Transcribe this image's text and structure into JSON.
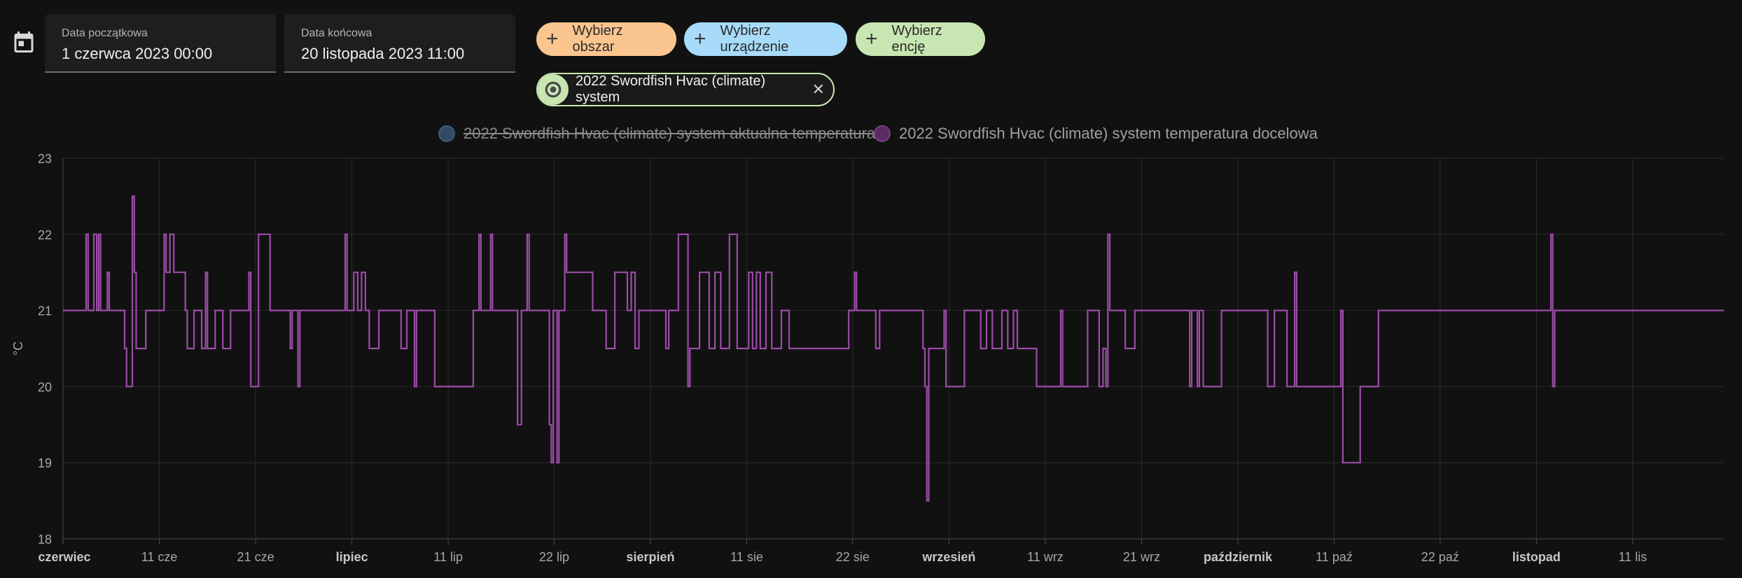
{
  "toolbar": {
    "calendar_icon": "calendar-icon",
    "start_label": "Data początkowa",
    "start_value": "1 czerwca 2023 00:00",
    "end_label": "Data końcowa",
    "end_value": "20 listopada 2023 11:00",
    "area_label": "Wybierz obszar",
    "device_label": "Wybierz urządzenie",
    "entity_label": "Wybierz encję",
    "plus_glyph": "+",
    "chip_label": "2022 Swordfish Hvac (climate) system",
    "chip_icon": "thermostat-icon",
    "chip_close": "✕",
    "colors": {
      "area": "#fbc58f",
      "device": "#a8dbf9",
      "entity": "#c8e6b1"
    }
  },
  "chart_data": {
    "type": "line",
    "step": true,
    "ylabel": "°C",
    "ylim": [
      18,
      23
    ],
    "yticks": [
      "23",
      "22",
      "21",
      "20",
      "19",
      "18"
    ],
    "xlim": [
      0,
      172.46
    ],
    "xticks": [
      {
        "label": "czerwiec",
        "day": 0,
        "bold": true
      },
      {
        "label": "11 cze",
        "day": 10,
        "bold": false
      },
      {
        "label": "21 cze",
        "day": 20,
        "bold": false
      },
      {
        "label": "lipiec",
        "day": 30,
        "bold": true
      },
      {
        "label": "11 lip",
        "day": 40,
        "bold": false
      },
      {
        "label": "22 lip",
        "day": 51,
        "bold": false
      },
      {
        "label": "sierpień",
        "day": 61,
        "bold": true
      },
      {
        "label": "11 sie",
        "day": 71,
        "bold": false
      },
      {
        "label": "22 sie",
        "day": 82,
        "bold": false
      },
      {
        "label": "wrzesień",
        "day": 92,
        "bold": true
      },
      {
        "label": "11 wrz",
        "day": 102,
        "bold": false
      },
      {
        "label": "21 wrz",
        "day": 112,
        "bold": false
      },
      {
        "label": "październik",
        "day": 122,
        "bold": true
      },
      {
        "label": "11 paź",
        "day": 132,
        "bold": false
      },
      {
        "label": "22 paź",
        "day": 143,
        "bold": false
      },
      {
        "label": "listopad",
        "day": 153,
        "bold": true
      },
      {
        "label": "11 lis",
        "day": 163,
        "bold": false
      }
    ],
    "grid": true,
    "legend_position": "top-center",
    "series": [
      {
        "name": "2022 Swordfish Hvac (climate) system aktualna temperatura",
        "color": "#3f5a7c",
        "hidden": true,
        "points": []
      },
      {
        "name": "2022 Swordfish Hvac (climate) system temperatura docelowa",
        "color": "#9c4ca8",
        "hidden": false,
        "points": [
          [
            0,
            21
          ],
          [
            2.4,
            21
          ],
          [
            2.4,
            22
          ],
          [
            2.6,
            22
          ],
          [
            2.6,
            21
          ],
          [
            3.2,
            21
          ],
          [
            3.2,
            22
          ],
          [
            3.5,
            22
          ],
          [
            3.5,
            21
          ],
          [
            3.7,
            21
          ],
          [
            3.7,
            22
          ],
          [
            3.9,
            22
          ],
          [
            3.9,
            21
          ],
          [
            4.6,
            21
          ],
          [
            4.6,
            21.5
          ],
          [
            4.8,
            21.5
          ],
          [
            4.8,
            21
          ],
          [
            6.4,
            21
          ],
          [
            6.4,
            20.5
          ],
          [
            6.6,
            20.5
          ],
          [
            6.6,
            20
          ],
          [
            7.2,
            20
          ],
          [
            7.2,
            22.5
          ],
          [
            7.4,
            22.5
          ],
          [
            7.4,
            21.5
          ],
          [
            7.6,
            21.5
          ],
          [
            7.6,
            20.5
          ],
          [
            8.6,
            20.5
          ],
          [
            8.6,
            21
          ],
          [
            10.5,
            21
          ],
          [
            10.5,
            22
          ],
          [
            10.7,
            22
          ],
          [
            10.7,
            21.5
          ],
          [
            11.1,
            21.5
          ],
          [
            11.1,
            22
          ],
          [
            11.5,
            22
          ],
          [
            11.5,
            21.5
          ],
          [
            12.7,
            21.5
          ],
          [
            12.7,
            21
          ],
          [
            12.9,
            21
          ],
          [
            12.9,
            20.5
          ],
          [
            13.6,
            20.5
          ],
          [
            13.6,
            21
          ],
          [
            14.4,
            21
          ],
          [
            14.4,
            20.5
          ],
          [
            14.8,
            20.5
          ],
          [
            14.8,
            21.5
          ],
          [
            15,
            21.5
          ],
          [
            15,
            20.5
          ],
          [
            15.8,
            20.5
          ],
          [
            15.8,
            21
          ],
          [
            16.6,
            21
          ],
          [
            16.6,
            20.5
          ],
          [
            17.4,
            20.5
          ],
          [
            17.4,
            21
          ],
          [
            19.3,
            21
          ],
          [
            19.3,
            21.5
          ],
          [
            19.5,
            21.5
          ],
          [
            19.5,
            20
          ],
          [
            20.3,
            20
          ],
          [
            20.3,
            22
          ],
          [
            21.5,
            22
          ],
          [
            21.5,
            21
          ],
          [
            23.6,
            21
          ],
          [
            23.6,
            20.5
          ],
          [
            23.8,
            20.5
          ],
          [
            23.8,
            21
          ],
          [
            24.4,
            21
          ],
          [
            24.4,
            20
          ],
          [
            24.6,
            20
          ],
          [
            24.6,
            21
          ],
          [
            29.3,
            21
          ],
          [
            29.3,
            22
          ],
          [
            29.5,
            22
          ],
          [
            29.5,
            21
          ],
          [
            30.2,
            21
          ],
          [
            30.2,
            21.5
          ],
          [
            30.6,
            21.5
          ],
          [
            30.6,
            21
          ],
          [
            31,
            21
          ],
          [
            31,
            21.5
          ],
          [
            31.4,
            21.5
          ],
          [
            31.4,
            21
          ],
          [
            31.8,
            21
          ],
          [
            31.8,
            20.5
          ],
          [
            32.8,
            20.5
          ],
          [
            32.8,
            21
          ],
          [
            35.1,
            21
          ],
          [
            35.1,
            20.5
          ],
          [
            35.7,
            20.5
          ],
          [
            35.7,
            21
          ],
          [
            36.5,
            21
          ],
          [
            36.5,
            20
          ],
          [
            36.7,
            20
          ],
          [
            36.7,
            21
          ],
          [
            38.6,
            21
          ],
          [
            38.6,
            20
          ],
          [
            42.6,
            20
          ],
          [
            42.6,
            21
          ],
          [
            43.2,
            21
          ],
          [
            43.2,
            22
          ],
          [
            43.4,
            22
          ],
          [
            43.4,
            21
          ],
          [
            44.4,
            21
          ],
          [
            44.4,
            22
          ],
          [
            44.6,
            22
          ],
          [
            44.6,
            21
          ],
          [
            47.2,
            21
          ],
          [
            47.2,
            19.5
          ],
          [
            47.6,
            19.5
          ],
          [
            47.6,
            21
          ],
          [
            48.2,
            21
          ],
          [
            48.2,
            22
          ],
          [
            48.4,
            22
          ],
          [
            48.4,
            21
          ],
          [
            50.5,
            21
          ],
          [
            50.5,
            19.5
          ],
          [
            50.7,
            19.5
          ],
          [
            50.7,
            19
          ],
          [
            50.9,
            19
          ],
          [
            50.9,
            21
          ],
          [
            51.3,
            21
          ],
          [
            51.3,
            19
          ],
          [
            51.5,
            19
          ],
          [
            51.5,
            21
          ],
          [
            52.1,
            21
          ],
          [
            52.1,
            22
          ],
          [
            52.3,
            22
          ],
          [
            52.3,
            21.5
          ],
          [
            55,
            21.5
          ],
          [
            55,
            21
          ],
          [
            56.4,
            21
          ],
          [
            56.4,
            20.5
          ],
          [
            57.3,
            20.5
          ],
          [
            57.3,
            21.5
          ],
          [
            58.6,
            21.5
          ],
          [
            58.6,
            21
          ],
          [
            59,
            21
          ],
          [
            59,
            21.5
          ],
          [
            59.4,
            21.5
          ],
          [
            59.4,
            20.5
          ],
          [
            59.8,
            20.5
          ],
          [
            59.8,
            21
          ],
          [
            62.6,
            21
          ],
          [
            62.6,
            20.5
          ],
          [
            62.9,
            20.5
          ],
          [
            62.9,
            21
          ],
          [
            63.9,
            21
          ],
          [
            63.9,
            22
          ],
          [
            64.9,
            22
          ],
          [
            64.9,
            20
          ],
          [
            65.1,
            20
          ],
          [
            65.1,
            20.5
          ],
          [
            66.1,
            20.5
          ],
          [
            66.1,
            21.5
          ],
          [
            67.1,
            21.5
          ],
          [
            67.1,
            20.5
          ],
          [
            67.7,
            20.5
          ],
          [
            67.7,
            21.5
          ],
          [
            68.3,
            21.5
          ],
          [
            68.3,
            20.5
          ],
          [
            69.2,
            20.5
          ],
          [
            69.2,
            22
          ],
          [
            70,
            22
          ],
          [
            70,
            20.5
          ],
          [
            71.2,
            20.5
          ],
          [
            71.2,
            21.5
          ],
          [
            71.6,
            21.5
          ],
          [
            71.6,
            20.5
          ],
          [
            72,
            20.5
          ],
          [
            72,
            21.5
          ],
          [
            72.4,
            21.5
          ],
          [
            72.4,
            20.5
          ],
          [
            73,
            20.5
          ],
          [
            73,
            21.5
          ],
          [
            73.6,
            21.5
          ],
          [
            73.6,
            20.5
          ],
          [
            74.6,
            20.5
          ],
          [
            74.6,
            21
          ],
          [
            75.4,
            21
          ],
          [
            75.4,
            20.5
          ],
          [
            81.6,
            20.5
          ],
          [
            81.6,
            21
          ],
          [
            82.2,
            21
          ],
          [
            82.2,
            21.5
          ],
          [
            82.4,
            21.5
          ],
          [
            82.4,
            21
          ],
          [
            84.4,
            21
          ],
          [
            84.4,
            20.5
          ],
          [
            84.8,
            20.5
          ],
          [
            84.8,
            21
          ],
          [
            89.3,
            21
          ],
          [
            89.3,
            20.5
          ],
          [
            89.5,
            20.5
          ],
          [
            89.5,
            20
          ],
          [
            89.7,
            20
          ],
          [
            89.7,
            18.5
          ],
          [
            89.9,
            18.5
          ],
          [
            89.9,
            20.5
          ],
          [
            91.5,
            20.5
          ],
          [
            91.5,
            21
          ],
          [
            91.7,
            21
          ],
          [
            91.7,
            20
          ],
          [
            93.6,
            20
          ],
          [
            93.6,
            21
          ],
          [
            95.3,
            21
          ],
          [
            95.3,
            20.5
          ],
          [
            95.9,
            20.5
          ],
          [
            95.9,
            21
          ],
          [
            96.5,
            21
          ],
          [
            96.5,
            20.5
          ],
          [
            97.5,
            20.5
          ],
          [
            97.5,
            21
          ],
          [
            98.1,
            21
          ],
          [
            98.1,
            20.5
          ],
          [
            98.7,
            20.5
          ],
          [
            98.7,
            21
          ],
          [
            99.1,
            21
          ],
          [
            99.1,
            20.5
          ],
          [
            101.1,
            20.5
          ],
          [
            101.1,
            20
          ],
          [
            103.6,
            20
          ],
          [
            103.6,
            21
          ],
          [
            103.8,
            21
          ],
          [
            103.8,
            20
          ],
          [
            106.4,
            20
          ],
          [
            106.4,
            21
          ],
          [
            107.6,
            21
          ],
          [
            107.6,
            20
          ],
          [
            108,
            20
          ],
          [
            108,
            20.5
          ],
          [
            108.3,
            20.5
          ],
          [
            108.3,
            20
          ],
          [
            108.5,
            20
          ],
          [
            108.5,
            22
          ],
          [
            108.7,
            22
          ],
          [
            108.7,
            21
          ],
          [
            110.3,
            21
          ],
          [
            110.3,
            20.5
          ],
          [
            111.3,
            20.5
          ],
          [
            111.3,
            21
          ],
          [
            117,
            21
          ],
          [
            117,
            20
          ],
          [
            117.2,
            20
          ],
          [
            117.2,
            21
          ],
          [
            117.8,
            21
          ],
          [
            117.8,
            20
          ],
          [
            118,
            20
          ],
          [
            118,
            21
          ],
          [
            118.4,
            21
          ],
          [
            118.4,
            20
          ],
          [
            120.3,
            20
          ],
          [
            120.3,
            21
          ],
          [
            125.1,
            21
          ],
          [
            125.1,
            20
          ],
          [
            125.8,
            20
          ],
          [
            125.8,
            21
          ],
          [
            127.1,
            21
          ],
          [
            127.1,
            20
          ],
          [
            127.9,
            20
          ],
          [
            127.9,
            21.5
          ],
          [
            128.1,
            21.5
          ],
          [
            128.1,
            20
          ],
          [
            132.7,
            20
          ],
          [
            132.7,
            21
          ],
          [
            132.9,
            21
          ],
          [
            132.9,
            19
          ],
          [
            134.7,
            19
          ],
          [
            134.7,
            20
          ],
          [
            136.6,
            20
          ],
          [
            136.6,
            21
          ],
          [
            154.5,
            21
          ],
          [
            154.5,
            22
          ],
          [
            154.7,
            22
          ],
          [
            154.7,
            20
          ],
          [
            154.9,
            20
          ],
          [
            154.9,
            21
          ],
          [
            172.46,
            21
          ]
        ]
      }
    ]
  }
}
